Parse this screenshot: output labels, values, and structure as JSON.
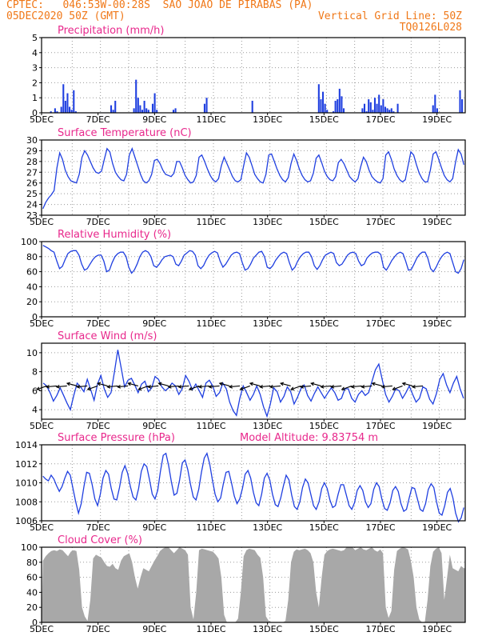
{
  "header": {
    "line1_left": "CPTEC:   046:53W-00:28S  SAO JOAO DE PIRABAS (PA)",
    "line2_left": "05DEC2020 50Z (GMT)",
    "line2_right": "Vertical Grid Line: 50Z",
    "line3_right": "TQ0126L028"
  },
  "colors": {
    "header": "#f07818",
    "title": "#e8288c",
    "series": "#1f3fe0",
    "cloud": "#a8a8a8",
    "arrow": "#000000",
    "grid": "#9a9a9a"
  },
  "x_axis": {
    "date_labels": [
      "5DEC",
      "7DEC",
      "9DEC",
      "11DEC",
      "13DEC",
      "15DEC",
      "17DEC",
      "19DEC"
    ],
    "start_date": "2020-12-05",
    "end_date": "2020-12-20",
    "timestep_hours": 3
  },
  "chart_data": [
    {
      "type": "bar",
      "title": "Precipitation (mm/h)",
      "ylim": [
        0,
        5
      ],
      "yticks": [
        "0",
        "1",
        "2",
        "3",
        "4",
        "5"
      ],
      "series": [
        {
          "values": [
            0,
            0,
            0,
            0,
            0.1,
            0,
            0.3,
            0.1,
            0,
            0.4,
            1.9,
            0.8,
            1.3,
            0.4,
            0.2,
            1.5,
            0.1,
            0,
            0,
            0,
            0,
            0,
            0,
            0,
            0,
            0,
            0,
            0,
            0,
            0,
            0,
            0,
            0,
            0.5,
            0.2,
            0.8,
            0,
            0,
            0,
            0,
            0,
            0,
            0,
            0,
            0.3,
            2.2,
            1.0,
            0.5,
            0.2,
            0.8,
            0.3,
            0.2,
            0,
            0.6,
            1.3,
            0.2,
            0,
            0,
            0,
            0,
            0,
            0,
            0,
            0.2,
            0.3,
            0,
            0,
            0,
            0,
            0,
            0,
            0,
            0,
            0,
            0,
            0,
            0,
            0,
            0.6,
            1.0,
            0,
            0,
            0,
            0,
            0,
            0,
            0,
            0,
            0,
            0,
            0,
            0,
            0,
            0,
            0,
            0,
            0,
            0,
            0,
            0,
            0,
            0.8,
            0,
            0,
            0,
            0,
            0,
            0,
            0,
            0,
            0,
            0,
            0,
            0,
            0,
            0,
            0,
            0,
            0,
            0,
            0,
            0,
            0,
            0,
            0,
            0,
            0,
            0,
            0,
            0,
            0,
            0,
            0,
            1.9,
            0.9,
            1.4,
            0.6,
            0.2,
            0,
            0,
            0.1,
            0.8,
            0.9,
            1.6,
            1.1,
            0.3,
            0,
            0,
            0,
            0,
            0,
            0,
            0,
            0,
            0.3,
            0.6,
            0.1,
            0.9,
            0.7,
            0.2,
            1.0,
            0.6,
            1.2,
            0.5,
            0.9,
            0.4,
            0.3,
            0.2,
            0.3,
            0.1,
            0,
            0.6,
            0,
            0,
            0,
            0,
            0,
            0,
            0,
            0,
            0,
            0,
            0,
            0,
            0,
            0,
            0,
            0,
            0.5,
            1.2,
            0.3,
            0,
            0,
            0,
            0,
            0,
            0,
            0,
            0,
            0,
            0,
            1.5,
            0.9,
            0
          ]
        }
      ]
    },
    {
      "type": "line",
      "title": "Surface Temperature (nC)",
      "ylim": [
        23,
        30
      ],
      "yticks": [
        "23",
        "24",
        "25",
        "26",
        "27",
        "28",
        "29",
        "30"
      ],
      "series": [
        {
          "values": [
            23.6,
            24.2,
            24.6,
            24.9,
            25.3,
            27.4,
            28.8,
            28.2,
            27.2,
            26.6,
            26.2,
            26.1,
            26.0,
            26.8,
            28.4,
            29.0,
            28.6,
            28.0,
            27.4,
            27.0,
            26.9,
            27.1,
            28.2,
            29.2,
            28.9,
            27.8,
            27.0,
            26.6,
            26.3,
            26.2,
            26.8,
            28.6,
            29.2,
            28.4,
            27.6,
            26.8,
            26.2,
            26.0,
            26.2,
            26.8,
            28.1,
            28.2,
            27.8,
            27.2,
            26.8,
            26.7,
            26.6,
            26.9,
            28.0,
            28.0,
            27.4,
            26.7,
            26.3,
            26.0,
            26.1,
            26.7,
            28.4,
            28.6,
            28.0,
            27.3,
            26.7,
            26.3,
            26.1,
            26.4,
            27.6,
            28.4,
            27.8,
            27.2,
            26.6,
            26.2,
            26.1,
            26.3,
            27.6,
            28.8,
            28.4,
            27.6,
            26.8,
            26.4,
            26.1,
            26.0,
            26.8,
            28.6,
            28.7,
            28.0,
            27.3,
            26.7,
            26.3,
            26.1,
            26.5,
            27.8,
            28.7,
            28.1,
            27.3,
            26.7,
            26.3,
            26.1,
            26.2,
            26.9,
            28.3,
            28.6,
            27.9,
            27.1,
            26.6,
            26.3,
            26.2,
            26.6,
            27.9,
            28.2,
            27.8,
            27.2,
            26.6,
            26.3,
            26.1,
            26.4,
            27.5,
            28.4,
            28.0,
            27.2,
            26.6,
            26.3,
            26.1,
            26.0,
            26.4,
            28.6,
            28.9,
            28.2,
            27.3,
            26.7,
            26.3,
            26.1,
            26.3,
            27.6,
            28.9,
            28.6,
            27.7,
            26.9,
            26.4,
            26.1,
            26.1,
            27.2,
            28.7,
            28.9,
            28.2,
            27.4,
            26.7,
            26.3,
            26.1,
            26.4,
            27.9,
            29.1,
            28.7,
            27.7
          ]
        }
      ]
    },
    {
      "type": "line",
      "title": "Relative Humidity (%)",
      "ylim": [
        0,
        100
      ],
      "yticks": [
        "0",
        "20",
        "40",
        "60",
        "80",
        "100"
      ],
      "series": [
        {
          "values": [
            95,
            93,
            91,
            88,
            86,
            74,
            64,
            67,
            76,
            84,
            87,
            88,
            88,
            82,
            70,
            62,
            64,
            70,
            76,
            80,
            82,
            82,
            74,
            60,
            62,
            72,
            80,
            84,
            86,
            86,
            80,
            66,
            58,
            62,
            70,
            80,
            86,
            88,
            86,
            80,
            68,
            66,
            70,
            76,
            80,
            81,
            82,
            80,
            70,
            68,
            74,
            82,
            85,
            88,
            87,
            82,
            68,
            64,
            68,
            76,
            82,
            85,
            87,
            85,
            74,
            66,
            70,
            76,
            82,
            85,
            86,
            84,
            72,
            62,
            64,
            70,
            78,
            82,
            86,
            87,
            80,
            66,
            64,
            68,
            75,
            80,
            84,
            86,
            84,
            72,
            62,
            66,
            74,
            80,
            84,
            86,
            86,
            80,
            68,
            63,
            68,
            76,
            82,
            84,
            86,
            84,
            72,
            68,
            70,
            76,
            82,
            85,
            86,
            84,
            74,
            68,
            70,
            78,
            82,
            85,
            86,
            86,
            83,
            66,
            62,
            68,
            75,
            80,
            84,
            86,
            84,
            74,
            62,
            63,
            70,
            78,
            83,
            86,
            86,
            78,
            64,
            60,
            66,
            74,
            80,
            84,
            86,
            84,
            72,
            60,
            58,
            64,
            76
          ]
        }
      ]
    },
    {
      "type": "line",
      "title": "Surface Wind (m/s)",
      "ylim": [
        3,
        11
      ],
      "yticks": [
        "4",
        "6",
        "8",
        "10"
      ],
      "series": [
        {
          "values": [
            6.8,
            6.5,
            5.8,
            4.9,
            5.5,
            6.3,
            5.5,
            4.7,
            4.0,
            5.5,
            6.8,
            6.4,
            5.9,
            7.2,
            6.1,
            5.0,
            6.7,
            7.6,
            6.2,
            5.3,
            5.8,
            8.0,
            10.3,
            8.4,
            6.4,
            7.1,
            7.3,
            6.6,
            5.8,
            6.7,
            7.0,
            5.9,
            6.3,
            7.5,
            7.2,
            6.4,
            6.0,
            6.3,
            6.8,
            6.5,
            5.6,
            6.2,
            7.6,
            7.0,
            6.1,
            6.7,
            6.0,
            5.3,
            6.8,
            7.1,
            6.5,
            5.4,
            5.8,
            6.8,
            6.2,
            4.8,
            3.9,
            3.4,
            5.2,
            6.5,
            5.8,
            5.0,
            5.6,
            6.5,
            5.6,
            4.3,
            3.3,
            4.6,
            6.3,
            5.9,
            4.8,
            5.4,
            6.4,
            5.9,
            4.6,
            5.3,
            6.2,
            6.6,
            5.5,
            4.9,
            5.7,
            6.4,
            5.8,
            5.2,
            5.8,
            6.3,
            5.8,
            5.0,
            5.2,
            6.2,
            6.2,
            5.2,
            4.8,
            5.6,
            6.0,
            5.5,
            5.8,
            7.0,
            8.2,
            8.8,
            7.2,
            5.6,
            4.8,
            5.4,
            6.2,
            6.0,
            5.2,
            5.8,
            6.5,
            5.6,
            4.8,
            5.2,
            6.4,
            6.2,
            5.1,
            4.6,
            5.7,
            7.2,
            7.8,
            6.6,
            5.8,
            6.8,
            7.5,
            6.2,
            5.2
          ]
        }
      ],
      "arrows": {
        "spacing_steps": 3,
        "count": 38
      }
    },
    {
      "type": "line",
      "title": "Surface Pressure (hPa)",
      "annotation": "Model Altitude: 9.83754 m",
      "ylim": [
        1006,
        1014
      ],
      "yticks": [
        "1006",
        "1008",
        "1010",
        "1012",
        "1014"
      ],
      "series": [
        {
          "values": [
            1010.7,
            1010.4,
            1010.2,
            1010.8,
            1010.4,
            1009.7,
            1009.1,
            1009.6,
            1010.5,
            1011.2,
            1010.8,
            1009.4,
            1008.0,
            1006.8,
            1007.8,
            1009.6,
            1011.1,
            1011.0,
            1009.8,
            1008.3,
            1007.6,
            1008.8,
            1010.5,
            1011.3,
            1010.9,
            1009.4,
            1008.3,
            1008.2,
            1009.5,
            1011.1,
            1011.8,
            1011.0,
            1009.6,
            1008.5,
            1008.2,
            1009.4,
            1011.2,
            1012.0,
            1011.7,
            1010.3,
            1008.8,
            1008.3,
            1009.2,
            1011.2,
            1012.9,
            1013.1,
            1011.8,
            1010.1,
            1008.7,
            1008.9,
            1010.3,
            1012.1,
            1012.4,
            1011.4,
            1009.8,
            1008.5,
            1008.2,
            1009.3,
            1011.1,
            1012.6,
            1013.1,
            1012.0,
            1010.3,
            1008.8,
            1008.0,
            1008.4,
            1009.9,
            1011.1,
            1011.2,
            1010.0,
            1008.6,
            1007.8,
            1008.3,
            1009.4,
            1010.9,
            1011.3,
            1010.5,
            1009.0,
            1007.9,
            1007.6,
            1008.8,
            1010.5,
            1011.0,
            1010.3,
            1008.8,
            1007.7,
            1007.5,
            1008.4,
            1009.7,
            1010.8,
            1010.3,
            1008.7,
            1007.5,
            1007.2,
            1008.0,
            1009.5,
            1010.4,
            1010.0,
            1008.8,
            1007.6,
            1007.2,
            1008.0,
            1009.4,
            1010.0,
            1009.4,
            1008.2,
            1007.4,
            1007.6,
            1008.8,
            1009.8,
            1009.8,
            1008.7,
            1007.6,
            1007.2,
            1007.9,
            1009.2,
            1009.7,
            1009.2,
            1008.0,
            1007.4,
            1007.8,
            1009.3,
            1010.0,
            1009.6,
            1008.3,
            1007.3,
            1007.1,
            1007.9,
            1009.2,
            1009.6,
            1009.1,
            1007.8,
            1007.0,
            1007.2,
            1008.4,
            1009.5,
            1009.4,
            1008.3,
            1007.2,
            1007.0,
            1007.8,
            1009.3,
            1009.9,
            1009.5,
            1008.0,
            1006.8,
            1006.6,
            1007.6,
            1009.0,
            1009.4,
            1008.4,
            1006.8,
            1005.9,
            1006.3,
            1007.4
          ]
        }
      ]
    },
    {
      "type": "area",
      "title": "Cloud Cover (%)",
      "ylim": [
        0,
        100
      ],
      "yticks": [
        "0",
        "20",
        "40",
        "60",
        "80",
        "100"
      ],
      "series": [
        {
          "values": [
            82,
            88,
            92,
            95,
            96,
            95,
            97,
            96,
            92,
            88,
            94,
            96,
            95,
            70,
            20,
            8,
            2,
            30,
            85,
            90,
            88,
            86,
            80,
            75,
            74,
            78,
            72,
            70,
            82,
            88,
            90,
            92,
            80,
            60,
            45,
            60,
            72,
            70,
            68,
            75,
            82,
            88,
            95,
            98,
            100,
            100,
            96,
            92,
            96,
            100,
            98,
            96,
            90,
            20,
            4,
            40,
            96,
            98,
            97,
            96,
            95,
            94,
            90,
            85,
            60,
            10,
            0,
            0,
            0,
            0,
            5,
            40,
            88,
            96,
            98,
            97,
            96,
            90,
            86,
            60,
            8,
            2,
            0,
            0,
            0,
            0,
            0,
            2,
            30,
            80,
            94,
            97,
            96,
            97,
            98,
            96,
            92,
            80,
            40,
            20,
            60,
            90,
            95,
            97,
            98,
            97,
            96,
            95,
            96,
            100,
            100,
            100,
            96,
            98,
            100,
            97,
            96,
            98,
            100,
            96,
            94,
            97,
            92,
            20,
            6,
            15,
            70,
            95,
            98,
            100,
            99,
            97,
            82,
            60,
            20,
            4,
            0,
            0,
            30,
            75,
            94,
            98,
            100,
            92,
            30,
            60,
            90,
            72,
            70,
            68,
            75,
            72
          ]
        }
      ]
    }
  ]
}
